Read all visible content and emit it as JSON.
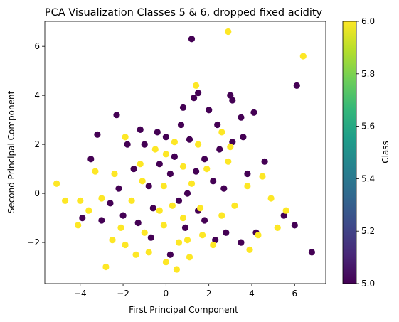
{
  "chart_data": {
    "type": "scatter",
    "title": "PCA Visualization Classes 5 & 6, dropped fixed acidity",
    "xlabel": "First Principal Component",
    "ylabel": "Second Principal Component",
    "xlim": [
      -5.65,
      7.45
    ],
    "ylim": [
      -3.68,
      7.02
    ],
    "xticks": [
      -4,
      -2,
      0,
      2,
      4,
      6
    ],
    "yticks": [
      -2,
      0,
      2,
      4,
      6
    ],
    "xtick_labels": [
      "−4",
      "−2",
      "0",
      "2",
      "4",
      "6"
    ],
    "ytick_labels": [
      "−2",
      "0",
      "2",
      "4",
      "6"
    ],
    "grid": false,
    "colormap": "viridis",
    "colorbar": {
      "label": "Class",
      "range": [
        5.0,
        6.0
      ],
      "ticks": [
        5.0,
        5.2,
        5.4,
        5.6,
        5.8,
        6.0
      ],
      "tick_labels": [
        "5.0",
        "5.2",
        "5.4",
        "5.6",
        "5.8",
        "6.0"
      ],
      "stops": [
        "#440154",
        "#482878",
        "#3e4989",
        "#31688e",
        "#26828e",
        "#1f9e89",
        "#35b779",
        "#6ece58",
        "#b5de2b",
        "#fde725"
      ]
    },
    "series": [
      {
        "class": 5,
        "color": "#440154",
        "points": [
          [
            1.2,
            6.3
          ],
          [
            3.0,
            4.0
          ],
          [
            3.1,
            3.8
          ],
          [
            6.1,
            4.4
          ],
          [
            4.1,
            3.3
          ],
          [
            1.3,
            3.9
          ],
          [
            -2.3,
            3.2
          ],
          [
            -3.2,
            2.4
          ],
          [
            -1.2,
            2.6
          ],
          [
            -0.4,
            2.5
          ],
          [
            0.7,
            2.8
          ],
          [
            2.4,
            2.8
          ],
          [
            3.6,
            2.3
          ],
          [
            3.1,
            2.1
          ],
          [
            3.8,
            0.8
          ],
          [
            4.6,
            1.3
          ],
          [
            -3.5,
            1.4
          ],
          [
            -2.2,
            0.2
          ],
          [
            -1.0,
            2.0
          ],
          [
            -0.3,
            1.2
          ],
          [
            0.4,
            1.5
          ],
          [
            1.1,
            2.2
          ],
          [
            1.8,
            1.4
          ],
          [
            2.2,
            0.5
          ],
          [
            -0.8,
            0.3
          ],
          [
            0.2,
            0.8
          ],
          [
            1.0,
            0.0
          ],
          [
            1.4,
            0.9
          ],
          [
            -0.6,
            -0.6
          ],
          [
            0.6,
            -0.3
          ],
          [
            -1.5,
            1.0
          ],
          [
            2.7,
            0.2
          ],
          [
            -2.6,
            -0.4
          ],
          [
            -3.9,
            -1.0
          ],
          [
            -3.0,
            -1.1
          ],
          [
            5.5,
            -0.9
          ],
          [
            6.0,
            -1.3
          ],
          [
            6.8,
            -2.4
          ],
          [
            4.2,
            -1.6
          ],
          [
            3.5,
            -2.0
          ],
          [
            -1.3,
            -1.2
          ],
          [
            1.5,
            -0.7
          ],
          [
            2.8,
            -1.6
          ],
          [
            0.9,
            -1.4
          ],
          [
            -0.7,
            -1.8
          ],
          [
            0.2,
            -2.5
          ],
          [
            1.8,
            -1.1
          ],
          [
            -2.0,
            -0.9
          ],
          [
            2.3,
            -1.9
          ],
          [
            0.8,
            3.5
          ],
          [
            3.5,
            3.1
          ],
          [
            2.5,
            1.8
          ],
          [
            -1.8,
            2.0
          ],
          [
            0.0,
            2.3
          ],
          [
            2.0,
            3.4
          ],
          [
            1.5,
            4.1
          ]
        ]
      },
      {
        "class": 6,
        "color": "#fde725",
        "points": [
          [
            2.9,
            6.6
          ],
          [
            6.4,
            5.6
          ],
          [
            1.4,
            4.4
          ],
          [
            2.6,
            2.5
          ],
          [
            3.0,
            1.9
          ],
          [
            -1.9,
            2.3
          ],
          [
            -3.3,
            0.9
          ],
          [
            -4.0,
            -0.3
          ],
          [
            -4.7,
            -0.3
          ],
          [
            -5.1,
            0.4
          ],
          [
            -4.1,
            -1.3
          ],
          [
            -2.8,
            -3.0
          ],
          [
            -1.4,
            -2.5
          ],
          [
            0.0,
            -2.8
          ],
          [
            0.5,
            -3.1
          ],
          [
            1.1,
            -2.6
          ],
          [
            2.2,
            -2.1
          ],
          [
            3.9,
            -2.3
          ],
          [
            4.3,
            -1.7
          ],
          [
            5.2,
            -1.4
          ],
          [
            4.9,
            -0.2
          ],
          [
            5.6,
            -0.7
          ],
          [
            3.2,
            -0.5
          ],
          [
            2.6,
            -0.9
          ],
          [
            1.6,
            -0.6
          ],
          [
            0.8,
            -1.0
          ],
          [
            -0.1,
            -1.3
          ],
          [
            -1.0,
            -1.6
          ],
          [
            -2.1,
            -1.4
          ],
          [
            -3.0,
            -0.2
          ],
          [
            -2.4,
            0.8
          ],
          [
            -1.2,
            1.2
          ],
          [
            -0.1,
            0.3
          ],
          [
            0.8,
            1.1
          ],
          [
            1.9,
            1.0
          ],
          [
            -0.5,
            1.8
          ],
          [
            0.3,
            -0.5
          ],
          [
            1.2,
            0.4
          ],
          [
            -1.6,
            -0.3
          ],
          [
            0.6,
            -2.0
          ],
          [
            -0.8,
            -2.4
          ],
          [
            1.7,
            -1.7
          ],
          [
            -2.5,
            -1.9
          ],
          [
            3.8,
            0.3
          ],
          [
            -3.6,
            -0.7
          ],
          [
            2.9,
            1.3
          ],
          [
            0.0,
            1.6
          ],
          [
            -1.1,
            0.5
          ],
          [
            4.5,
            0.7
          ],
          [
            -0.3,
            -0.7
          ],
          [
            1.0,
            -1.9
          ],
          [
            -1.9,
            -2.1
          ],
          [
            0.4,
            2.1
          ],
          [
            1.5,
            2.0
          ]
        ]
      }
    ]
  }
}
